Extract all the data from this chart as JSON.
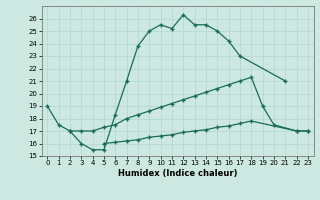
{
  "xlabel": "Humidex (Indice chaleur)",
  "background_color": "#cce8e0",
  "grid_color": "#b0d8cc",
  "line_color": "#1a6b5a",
  "xlim": [
    -0.5,
    23.5
  ],
  "ylim": [
    15,
    27
  ],
  "xticks": [
    0,
    1,
    2,
    3,
    4,
    5,
    6,
    7,
    8,
    9,
    10,
    11,
    12,
    13,
    14,
    15,
    16,
    17,
    18,
    19,
    20,
    21,
    22,
    23
  ],
  "yticks": [
    15,
    16,
    17,
    18,
    19,
    20,
    21,
    22,
    23,
    24,
    25,
    26
  ],
  "line1_x": [
    0,
    1,
    2,
    3,
    4,
    5,
    6,
    7,
    8,
    9,
    10,
    11,
    12,
    13,
    14,
    15,
    16,
    17,
    21
  ],
  "line1_y": [
    19.0,
    17.5,
    17.0,
    16.0,
    15.5,
    15.5,
    18.3,
    21.0,
    23.8,
    25.0,
    25.5,
    25.2,
    26.3,
    25.5,
    25.5,
    25.0,
    24.2,
    23.0,
    21.0
  ],
  "line2_x": [
    2,
    3,
    4,
    5,
    6,
    7,
    8,
    9,
    10,
    11,
    12,
    13,
    14,
    15,
    16,
    17,
    18,
    19,
    20,
    22,
    23
  ],
  "line2_y": [
    17.0,
    17.0,
    17.0,
    17.3,
    17.5,
    18.0,
    18.3,
    18.6,
    18.9,
    19.2,
    19.5,
    19.8,
    20.1,
    20.4,
    20.7,
    21.0,
    21.3,
    19.0,
    17.5,
    17.0,
    17.0
  ],
  "line3_x": [
    5,
    6,
    7,
    8,
    9,
    10,
    11,
    12,
    13,
    14,
    15,
    16,
    17,
    18,
    22,
    23
  ],
  "line3_y": [
    16.0,
    16.1,
    16.2,
    16.3,
    16.5,
    16.6,
    16.7,
    16.9,
    17.0,
    17.1,
    17.3,
    17.4,
    17.6,
    17.8,
    17.0,
    17.0
  ]
}
